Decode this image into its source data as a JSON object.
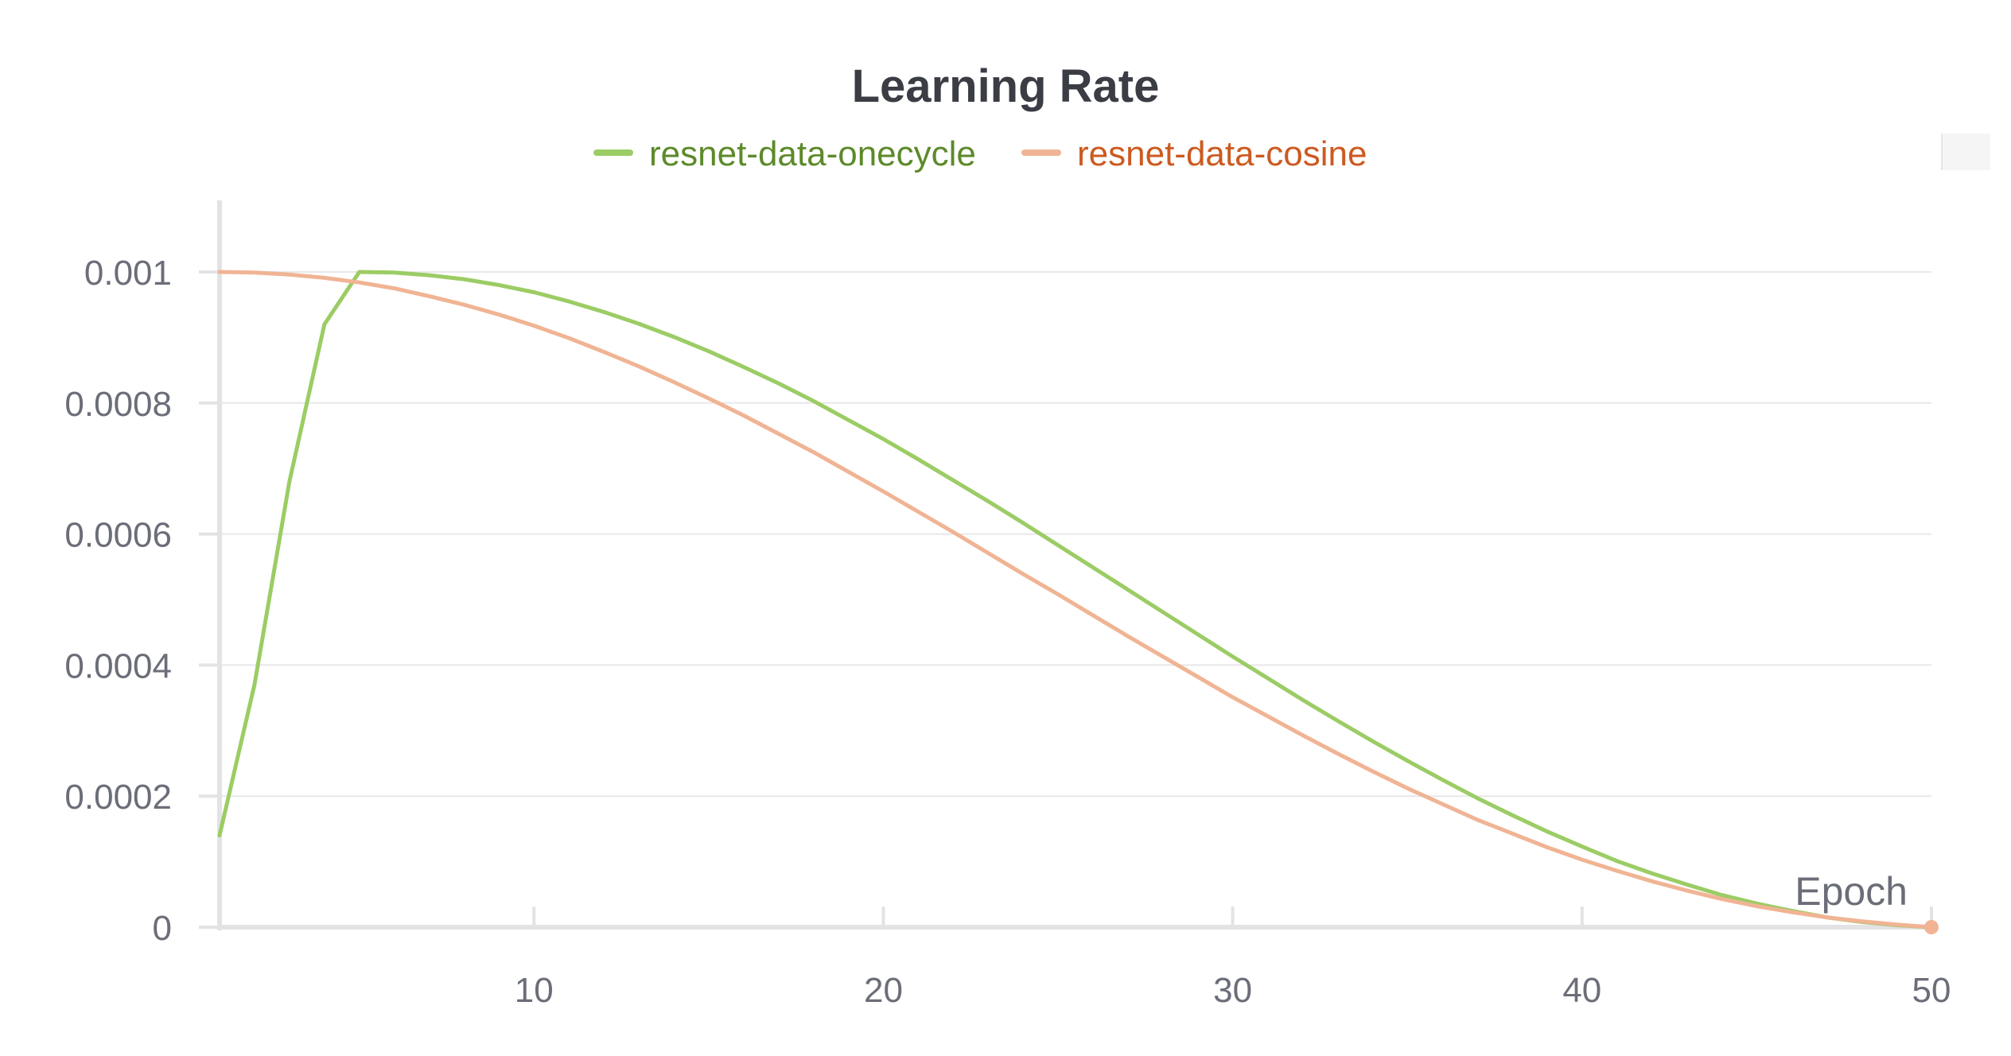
{
  "chart_data": {
    "type": "line",
    "title": "Learning Rate",
    "xlabel": "Epoch",
    "ylabel": "",
    "xlim": [
      1,
      50
    ],
    "ylim": [
      0,
      0.0011
    ],
    "x_ticks": [
      10,
      20,
      30,
      40,
      50
    ],
    "x_tick_labels": [
      "10",
      "20",
      "30",
      "40",
      "50"
    ],
    "y_ticks": [
      0,
      0.0002,
      0.0004,
      0.0006,
      0.0008,
      0.001
    ],
    "y_tick_labels": [
      "0",
      "0.0002",
      "0.0004",
      "0.0006",
      "0.0008",
      "0.001"
    ],
    "grid": "horizontal",
    "legend_position": "top-center",
    "series": [
      {
        "name": "resnet-data-onecycle",
        "color": "#9ccc65",
        "label_color": "#5c8a2a",
        "x": [
          1,
          2,
          3,
          4,
          5,
          6,
          7,
          8,
          9,
          10,
          11,
          12,
          13,
          14,
          15,
          16,
          17,
          18,
          19,
          20,
          21,
          22,
          23,
          24,
          25,
          26,
          27,
          28,
          29,
          30,
          31,
          32,
          33,
          34,
          35,
          36,
          37,
          38,
          39,
          40,
          41,
          42,
          43,
          44,
          45,
          46,
          47,
          48,
          49,
          50
        ],
        "values": [
          0.00014,
          0.00037,
          0.00068,
          0.00092,
          0.001,
          0.000999,
          0.000995,
          0.000989,
          0.00098,
          0.000969,
          0.000955,
          0.000939,
          0.000921,
          0.000901,
          0.000879,
          0.000855,
          0.00083,
          0.000803,
          0.000774,
          0.000745,
          0.000714,
          0.000682,
          0.00065,
          0.000617,
          0.000583,
          0.000549,
          0.000515,
          0.000481,
          0.000447,
          0.000413,
          0.00038,
          0.000347,
          0.000315,
          0.000284,
          0.000254,
          0.000225,
          0.000197,
          0.000171,
          0.000146,
          0.000123,
          0.000101,
          8.2e-05,
          6.5e-05,
          4.9e-05,
          3.6e-05,
          2.5e-05,
          1.5e-05,
          8e-06,
          3e-06,
          0
        ]
      },
      {
        "name": "resnet-data-cosine",
        "color": "#f0b494",
        "label_color": "#cc5a20",
        "x": [
          1,
          2,
          3,
          4,
          5,
          6,
          7,
          8,
          9,
          10,
          11,
          12,
          13,
          14,
          15,
          16,
          17,
          18,
          19,
          20,
          21,
          22,
          23,
          24,
          25,
          26,
          27,
          28,
          29,
          30,
          31,
          32,
          33,
          34,
          35,
          36,
          37,
          38,
          39,
          40,
          41,
          42,
          43,
          44,
          45,
          46,
          47,
          48,
          49,
          50
        ],
        "values": [
          0.001,
          0.000999,
          0.000996,
          0.000991,
          0.000984,
          0.000975,
          0.000963,
          0.00095,
          0.000935,
          0.000918,
          0.000899,
          0.000878,
          0.000856,
          0.000832,
          0.000807,
          0.000781,
          0.000753,
          0.000725,
          0.000695,
          0.000665,
          0.000634,
          0.000603,
          0.000571,
          0.000539,
          0.000508,
          0.000476,
          0.000444,
          0.000413,
          0.000382,
          0.000351,
          0.000322,
          0.000293,
          0.000265,
          0.000238,
          0.000212,
          0.000188,
          0.000164,
          0.000143,
          0.000122,
          0.000103,
          8.6e-05,
          7e-05,
          5.6e-05,
          4.3e-05,
          3.2e-05,
          2.3e-05,
          1.5e-05,
          9e-06,
          4e-06,
          0
        ]
      }
    ]
  }
}
